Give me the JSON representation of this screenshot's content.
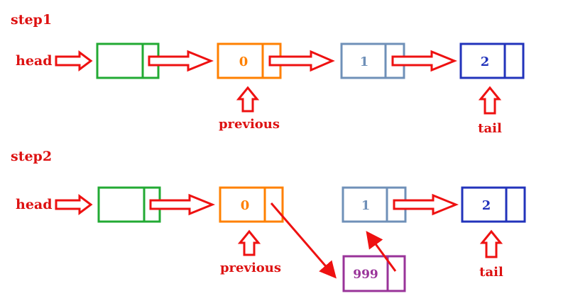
{
  "steps": [
    {
      "title": "step1",
      "head_label": "head",
      "previous_label": "previous",
      "tail_label": "tail",
      "nodes": [
        {
          "value": "",
          "color": "#22aa33"
        },
        {
          "value": "0",
          "color": "#ff8000"
        },
        {
          "value": "1",
          "color": "#6f90b8"
        },
        {
          "value": "2",
          "color": "#2233bb"
        }
      ]
    },
    {
      "title": "step2",
      "head_label": "head",
      "previous_label": "previous",
      "tail_label": "tail",
      "nodes": [
        {
          "value": "",
          "color": "#22aa33"
        },
        {
          "value": "0",
          "color": "#ff8000"
        },
        {
          "value": "1",
          "color": "#6f90b8"
        },
        {
          "value": "2",
          "color": "#2233bb"
        }
      ],
      "new_node": {
        "value": "999",
        "color": "#993399"
      }
    }
  ],
  "colors": {
    "arrow": "#ee1111",
    "label": "#dd1111"
  }
}
